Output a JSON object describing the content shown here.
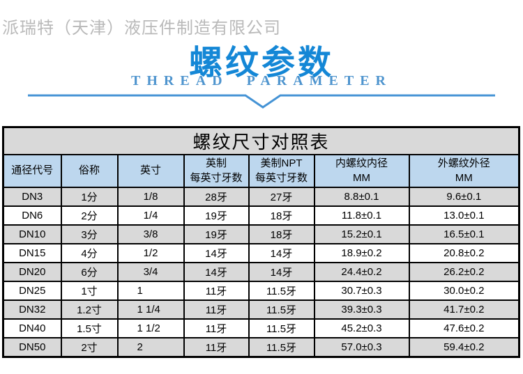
{
  "header": {
    "company": "派瑞特（天津）液压件制造有限公司",
    "title": "螺纹参数",
    "subtitle": "THREAD PARAMETER",
    "title_color": "#1487d6",
    "subtitle_color": "#4e94ce",
    "divider_color": "#4593d5"
  },
  "table": {
    "caption": "螺纹尺寸对照表",
    "columns": [
      {
        "label": "通径代号",
        "sub": ""
      },
      {
        "label": "俗称",
        "sub": ""
      },
      {
        "label": "英寸",
        "sub": ""
      },
      {
        "label": "英制",
        "sub": "每英寸牙数"
      },
      {
        "label": "美制NPT",
        "sub": "每英寸牙数"
      },
      {
        "label": "内螺纹内径",
        "sub": "MM"
      },
      {
        "label": "外螺纹外径",
        "sub": "MM"
      }
    ],
    "rows": [
      [
        "DN3",
        "1分",
        "1/8",
        "28牙",
        "27牙",
        "8.8±0.1",
        "9.6±0.1"
      ],
      [
        "DN6",
        "2分",
        "1/4",
        "19牙",
        "18牙",
        "11.8±0.1",
        "13.0±0.1"
      ],
      [
        "DN10",
        "3分",
        "3/8",
        "19牙",
        "18牙",
        "15.2±0.1",
        "16.5±0.1"
      ],
      [
        "DN15",
        "4分",
        "1/2",
        "14牙",
        "14牙",
        "18.9±0.2",
        "20.8±0.2"
      ],
      [
        "DN20",
        "6分",
        "3/4",
        "14牙",
        "14牙",
        "24.4±0.2",
        "26.2±0.2"
      ],
      [
        "DN25",
        "1寸",
        "1",
        "11牙",
        "11.5牙",
        "30.7±0.3",
        "30.0±0.2"
      ],
      [
        "DN32",
        "1.2寸",
        "1 1/4",
        "11牙",
        "11.5牙",
        "39.3±0.3",
        "41.7±0.2"
      ],
      [
        "DN40",
        "1.5寸",
        "1 1/2",
        "11牙",
        "11.5牙",
        "45.2±0.3",
        "47.6±0.2"
      ],
      [
        "DN50",
        "2寸",
        "2",
        "11牙",
        "11.5牙",
        "57.0±0.3",
        "59.4±0.2"
      ]
    ],
    "colors": {
      "header_bg": "#bdd7ee",
      "stripe_bg": "#d9d9d9",
      "border": "#000000"
    }
  }
}
